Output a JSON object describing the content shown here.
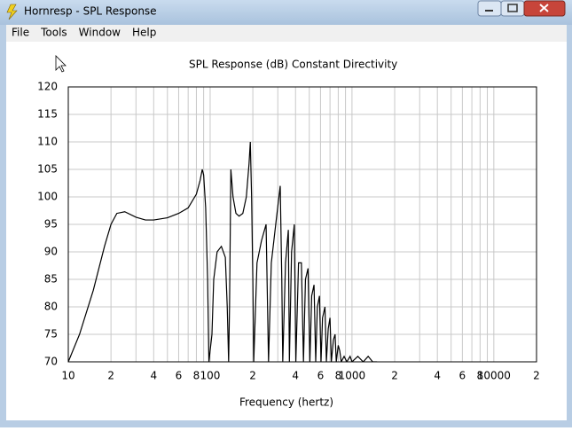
{
  "window": {
    "title": "Hornresp - SPL Response",
    "menu": [
      "File",
      "Tools",
      "Window",
      "Help"
    ]
  },
  "chart_data": {
    "type": "line",
    "title": "SPL Response (dB)",
    "subtitle": "Constant Directivity",
    "xlabel": "Frequency (hertz)",
    "x": [
      10,
      12,
      15,
      18,
      20,
      22,
      25,
      30,
      35,
      40,
      50,
      60,
      70,
      80,
      85,
      88,
      90,
      93,
      96,
      98,
      103,
      106,
      112,
      120,
      128,
      132,
      135,
      137,
      140,
      145,
      152,
      160,
      170,
      180,
      188,
      192,
      196,
      200,
      203,
      214,
      230,
      248,
      258,
      270,
      290,
      312,
      320,
      325,
      340,
      356,
      362,
      375,
      392,
      402,
      420,
      440,
      455,
      470,
      490,
      505,
      520,
      540,
      555,
      570,
      590,
      605,
      620,
      645,
      660,
      680,
      700,
      715,
      740,
      760,
      775,
      800,
      820,
      840,
      880,
      920,
      970,
      1000,
      1100,
      1200,
      1300,
      1400,
      1500
    ],
    "series": [
      {
        "color": "#000000",
        "values": [
          70,
          75,
          83,
          91,
          95,
          97,
          97.3,
          96.3,
          95.8,
          95.8,
          96.2,
          97,
          98,
          100.5,
          103,
          105,
          104,
          98,
          85,
          70,
          75,
          85,
          90,
          91,
          89,
          80,
          70,
          80,
          105,
          100,
          97,
          96.5,
          97,
          100,
          106,
          110,
          100,
          85,
          70,
          88,
          92,
          95,
          70,
          88,
          95,
          102,
          85,
          70,
          88,
          94,
          70,
          90,
          95,
          70,
          88,
          88,
          70,
          85,
          87,
          70,
          82,
          84,
          70,
          80,
          82,
          70,
          78,
          80,
          70,
          76,
          78,
          70,
          74,
          75,
          70,
          73,
          72,
          70,
          71,
          70,
          71,
          70,
          71,
          70,
          71,
          70,
          70
        ]
      }
    ],
    "xscale": "log",
    "xlim": [
      10,
      20000
    ],
    "ylim": [
      70,
      120
    ],
    "xticks": [
      10,
      {
        "value": 20,
        "label": "2"
      },
      {
        "value": 40,
        "label": "4"
      },
      {
        "value": 60,
        "label": "6"
      },
      {
        "value": 80,
        "label": "8"
      },
      100,
      {
        "value": 200,
        "label": "2"
      },
      {
        "value": 400,
        "label": "4"
      },
      {
        "value": 600,
        "label": "6"
      },
      {
        "value": 800,
        "label": "8"
      },
      1000,
      {
        "value": 2000,
        "label": "2"
      },
      {
        "value": 4000,
        "label": "4"
      },
      {
        "value": 6000,
        "label": "6"
      },
      {
        "value": 8000,
        "label": "8"
      },
      10000,
      {
        "value": 20000,
        "label": "2"
      }
    ],
    "xminorticks": [
      30,
      50,
      70,
      90,
      300,
      500,
      700,
      900,
      3000,
      5000,
      7000,
      9000
    ],
    "yticks": [
      70,
      75,
      80,
      85,
      90,
      95,
      100,
      105,
      110,
      115,
      120
    ],
    "grid": true
  }
}
